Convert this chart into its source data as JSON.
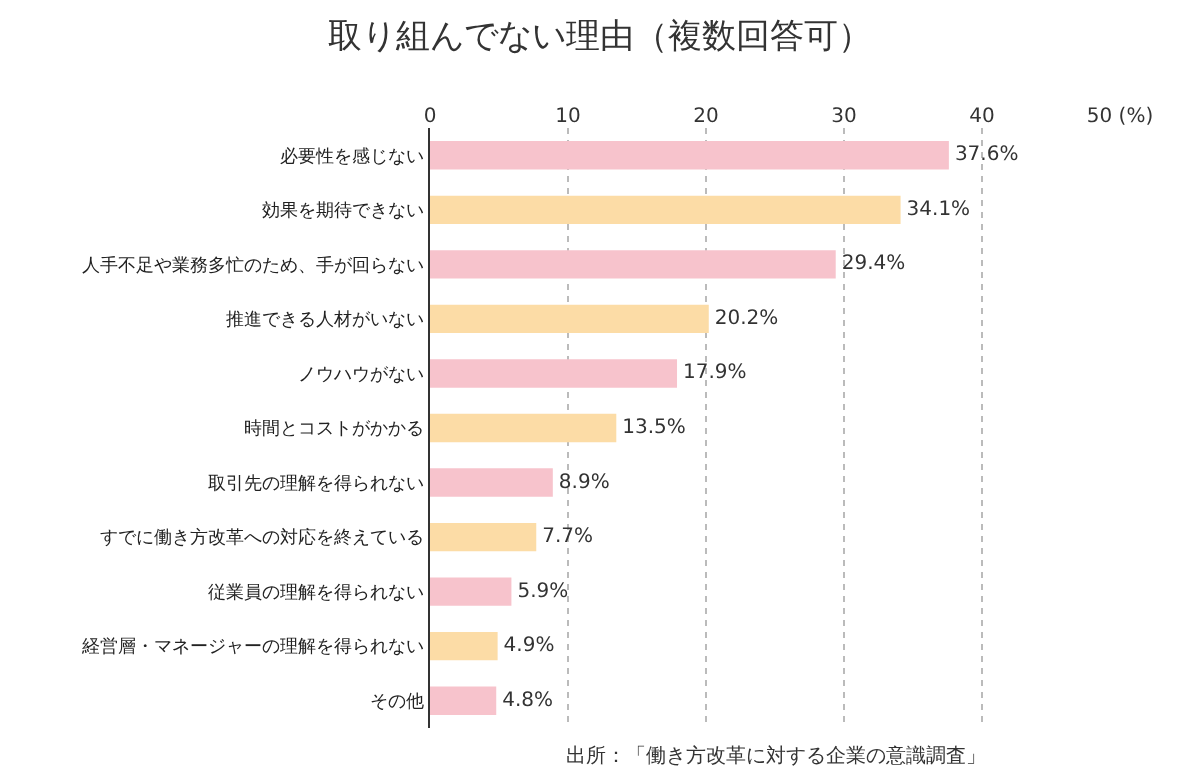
{
  "chart_data": {
    "type": "bar",
    "orientation": "horizontal",
    "title": "取り組んでない理由（複数回答可）",
    "categories": [
      "必要性を感じない",
      "効果を期待できない",
      "人手不足や業務多忙のため、手が回らない",
      "推進できる人材がいない",
      "ノウハウがない",
      "時間とコストがかかる",
      "取引先の理解を得られない",
      "すでに働き方改革への対応を終えている",
      "従業員の理解を得られない",
      "経営層・マネージャーの理解を得られない",
      "その他"
    ],
    "values": [
      37.6,
      34.1,
      29.4,
      20.2,
      17.9,
      13.5,
      8.9,
      7.7,
      5.9,
      4.9,
      4.8
    ],
    "colors": [
      "#f7c3cc",
      "#fcdca6",
      "#f7c3cc",
      "#fcdca6",
      "#f7c3cc",
      "#fcdca6",
      "#f7c3cc",
      "#fcdca6",
      "#f7c3cc",
      "#fcdca6",
      "#f7c3cc"
    ],
    "value_labels": [
      "37.6%",
      "34.1%",
      "29.4%",
      "20.2%",
      "17.9%",
      "13.5%",
      "8.9%",
      "7.7%",
      "5.9%",
      "4.9%",
      "4.8%"
    ],
    "xlim": [
      0,
      50
    ],
    "xticks": [
      0,
      10,
      20,
      30,
      40,
      {
        "value": 50,
        "label": "50 (%)"
      }
    ],
    "grid": "x",
    "annotations": [
      "出所：「働き方改革に対する企業の意識調査」"
    ]
  }
}
